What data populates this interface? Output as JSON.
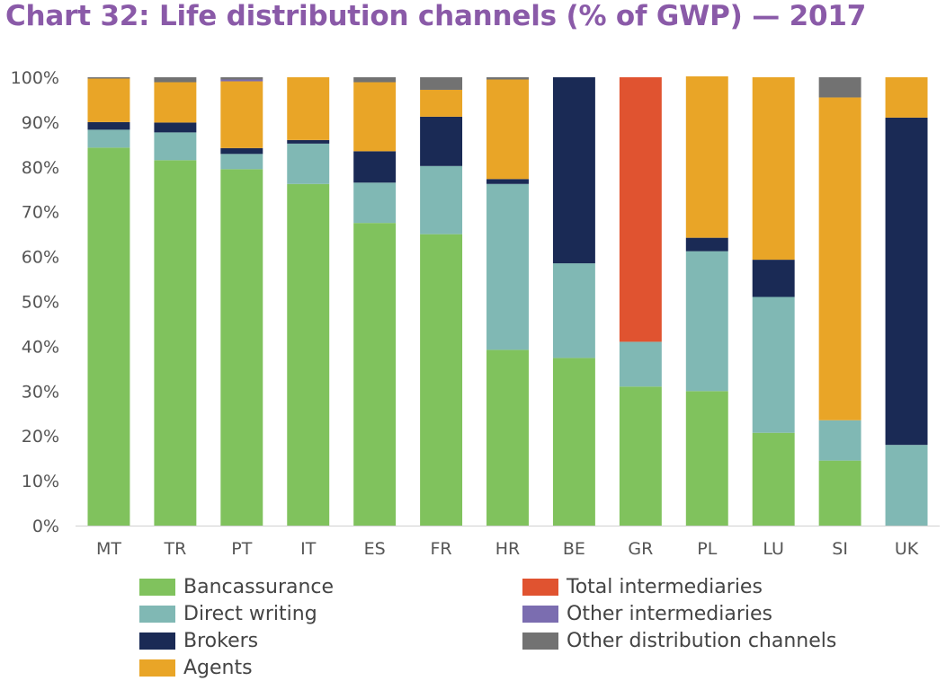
{
  "title": "Chart 32: Life distribution channels (% of GWP) — 2017",
  "chart_data": {
    "type": "bar",
    "stacked": true,
    "title": "Chart 32: Life distribution channels (% of GWP) — 2017",
    "xlabel": "",
    "ylabel": "",
    "ylim": [
      0,
      100
    ],
    "ytick_labels": [
      "0%",
      "10%",
      "20%",
      "30%",
      "40%",
      "50%",
      "60%",
      "70%",
      "80%",
      "90%",
      "100%"
    ],
    "grid": false,
    "legend_position": "bottom",
    "categories": [
      "MT",
      "TR",
      "PT",
      "IT",
      "ES",
      "FR",
      "HR",
      "BE",
      "GR",
      "PL",
      "LU",
      "SI",
      "UK"
    ],
    "series": [
      {
        "name": "Bancassurance",
        "color": "#80c25d",
        "values": [
          84.3,
          81.5,
          79.5,
          76.2,
          67.5,
          65.0,
          39.2,
          37.4,
          31.0,
          30.0,
          20.7,
          14.5,
          0.0
        ]
      },
      {
        "name": "Direct writing",
        "color": "#80b8b4",
        "values": [
          4.0,
          6.2,
          3.4,
          9.0,
          9.0,
          15.2,
          37.0,
          21.1,
          10.0,
          31.2,
          30.3,
          9.0,
          18.0
        ]
      },
      {
        "name": "Brokers",
        "color": "#1a2a55",
        "values": [
          1.7,
          2.2,
          1.3,
          0.8,
          7.0,
          11.0,
          1.1,
          41.5,
          0.0,
          3.0,
          8.3,
          0.0,
          73.0
        ]
      },
      {
        "name": "Agents",
        "color": "#e9a527",
        "values": [
          9.7,
          9.0,
          14.9,
          14.0,
          15.4,
          6.0,
          22.2,
          0.0,
          0.0,
          36.0,
          40.7,
          72.0,
          9.0
        ]
      },
      {
        "name": "Total intermediaries",
        "color": "#e05330",
        "values": [
          0,
          0,
          0,
          0,
          0,
          0,
          0,
          0,
          59.0,
          0,
          0,
          0,
          0
        ]
      },
      {
        "name": "Other intermediaries",
        "color": "#7b6db0",
        "values": [
          0,
          0,
          0.4,
          0,
          0,
          0,
          0,
          0,
          0,
          0,
          0,
          0,
          0
        ]
      },
      {
        "name": "Other distribution channels",
        "color": "#727272",
        "values": [
          0.3,
          1.1,
          0.5,
          0,
          1.1,
          2.8,
          0.5,
          0,
          0,
          0,
          0,
          4.5,
          0
        ]
      }
    ]
  }
}
